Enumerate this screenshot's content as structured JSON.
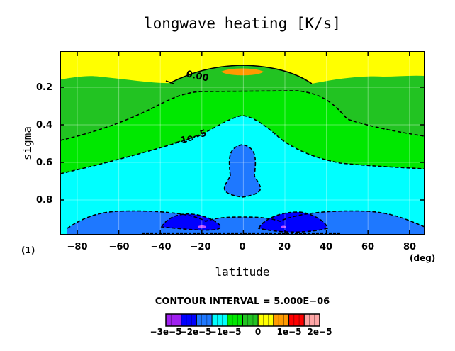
{
  "chart_data": {
    "type": "heatmap",
    "title": "longwave heating [K/s]",
    "xlabel": "latitude",
    "ylabel": "sigma",
    "x_unit": "(deg)",
    "panel_index": "(1)",
    "xlim": [
      -87,
      87
    ],
    "ylim": [
      0.02,
      0.99
    ],
    "y_inverted": true,
    "x_ticks": [
      "−80",
      "−60",
      "−40",
      "−20",
      "0",
      "20",
      "40",
      "60",
      "80"
    ],
    "y_ticks": [
      "0.2",
      "0.4",
      "0.6",
      "0.8"
    ],
    "contour_interval_text": "CONTOUR INTERVAL = 5.000E−06",
    "contour_labels": [
      "0.00",
      "−1e−5"
    ],
    "colorbar": {
      "colors": [
        "#a020f0",
        "#0000ff",
        "#1e78ff",
        "#00ffff",
        "#00e800",
        "#22c322",
        "#ffff00",
        "#ff9a00",
        "#ff0000",
        "#ffa6a6"
      ],
      "labels": [
        "−3e−5",
        "−2e−5",
        "−1e−5",
        "0",
        "1e−5",
        "2e−5"
      ]
    },
    "field_regions": [
      {
        "level": "0 to 5e-6",
        "color": "#ffff00",
        "note": "upper troposphere, high latitudes"
      },
      {
        "level": "5e-6 to 1e-5",
        "color": "#ff9a00",
        "note": "equatorial top (sigma ~0.1)"
      },
      {
        "level": "-5e-6 to 0",
        "color": "#22c322",
        "note": "sigma ~0.2-0.35"
      },
      {
        "level": "-1e-5 to -5e-6",
        "color": "#00e800",
        "note": "mid troposphere"
      },
      {
        "level": "-1.5e-5 to -1e-5",
        "color": "#00ffff",
        "note": "lower troposphere"
      },
      {
        "level": "-2e-5 to -1.5e-5",
        "color": "#1e78ff",
        "note": "near surface and equatorial column sigma 0.5-0.8"
      },
      {
        "level": "-2.5e-5 to -2e-5",
        "color": "#0000ff",
        "note": "near surface near 25S and 25N"
      }
    ]
  }
}
